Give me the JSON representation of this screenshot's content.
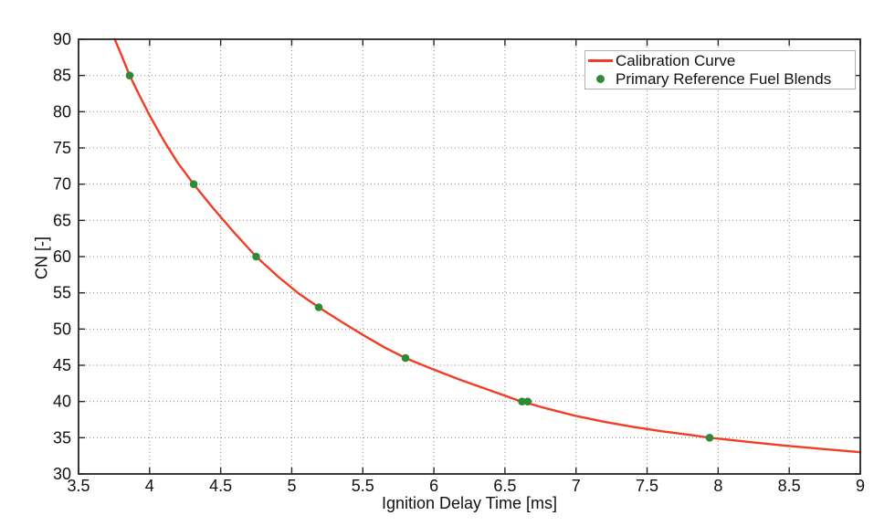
{
  "chart_data": {
    "type": "line",
    "title": "",
    "xlabel": "Ignition Delay Time [ms]",
    "ylabel": "CN [-]",
    "xlim": [
      3.5,
      9
    ],
    "ylim": [
      30,
      90
    ],
    "grid": "dotted",
    "xticks": {
      "values": [
        3.5,
        4,
        4.5,
        5,
        5.5,
        6,
        6.5,
        7,
        7.5,
        8,
        8.5,
        9
      ],
      "labels": [
        "3.5",
        "4",
        "4.5",
        "5",
        "5.5",
        "6",
        "6.5",
        "7",
        "7.5",
        "8",
        "8.5",
        "9"
      ]
    },
    "yticks": {
      "values": [
        30,
        35,
        40,
        45,
        50,
        55,
        60,
        65,
        70,
        75,
        80,
        85,
        90
      ],
      "labels": [
        "30",
        "35",
        "40",
        "45",
        "50",
        "55",
        "60",
        "65",
        "70",
        "75",
        "80",
        "85",
        "90"
      ]
    },
    "legend": {
      "position": "top-right",
      "entries": [
        {
          "label": "Calibration Curve",
          "marker": "line",
          "color": "#f23c26"
        },
        {
          "label": "Primary Reference Fuel Blends",
          "marker": "dot",
          "color": "#2e8b35"
        }
      ]
    },
    "series": [
      {
        "name": "Calibration Curve",
        "type": "line",
        "color": "#f23c26",
        "points": [
          [
            3.755,
            90
          ],
          [
            3.8,
            87.9
          ],
          [
            3.86,
            85
          ],
          [
            3.93,
            82.2
          ],
          [
            4.0,
            79.5
          ],
          [
            4.1,
            76.0
          ],
          [
            4.2,
            72.9
          ],
          [
            4.31,
            70
          ],
          [
            4.45,
            66.6
          ],
          [
            4.6,
            63.2
          ],
          [
            4.75,
            60
          ],
          [
            4.9,
            57.3
          ],
          [
            5.05,
            54.9
          ],
          [
            5.19,
            53
          ],
          [
            5.35,
            51.0
          ],
          [
            5.5,
            49.2
          ],
          [
            5.65,
            47.5
          ],
          [
            5.8,
            46
          ],
          [
            6.0,
            44.4
          ],
          [
            6.2,
            42.9
          ],
          [
            6.4,
            41.5
          ],
          [
            6.6,
            40.1
          ],
          [
            6.8,
            39.0
          ],
          [
            7.0,
            38.0
          ],
          [
            7.2,
            37.2
          ],
          [
            7.4,
            36.5
          ],
          [
            7.6,
            35.9
          ],
          [
            7.8,
            35.4
          ],
          [
            7.94,
            35.0
          ],
          [
            8.2,
            34.45
          ],
          [
            8.45,
            33.95
          ],
          [
            8.7,
            33.5
          ],
          [
            9.0,
            33.0
          ]
        ]
      },
      {
        "name": "Primary Reference Fuel Blends",
        "type": "scatter",
        "color": "#2e8b35",
        "marker_radius": 4.3,
        "points": [
          [
            3.86,
            85
          ],
          [
            4.31,
            70
          ],
          [
            4.75,
            60
          ],
          [
            5.19,
            53
          ],
          [
            5.8,
            46
          ],
          [
            6.62,
            40
          ],
          [
            6.66,
            40
          ],
          [
            7.94,
            35
          ]
        ]
      }
    ],
    "colors": {
      "grid": "#8c8c8c",
      "axis": "#262626",
      "tick_text": "#111111",
      "background": "#ffffff"
    }
  }
}
